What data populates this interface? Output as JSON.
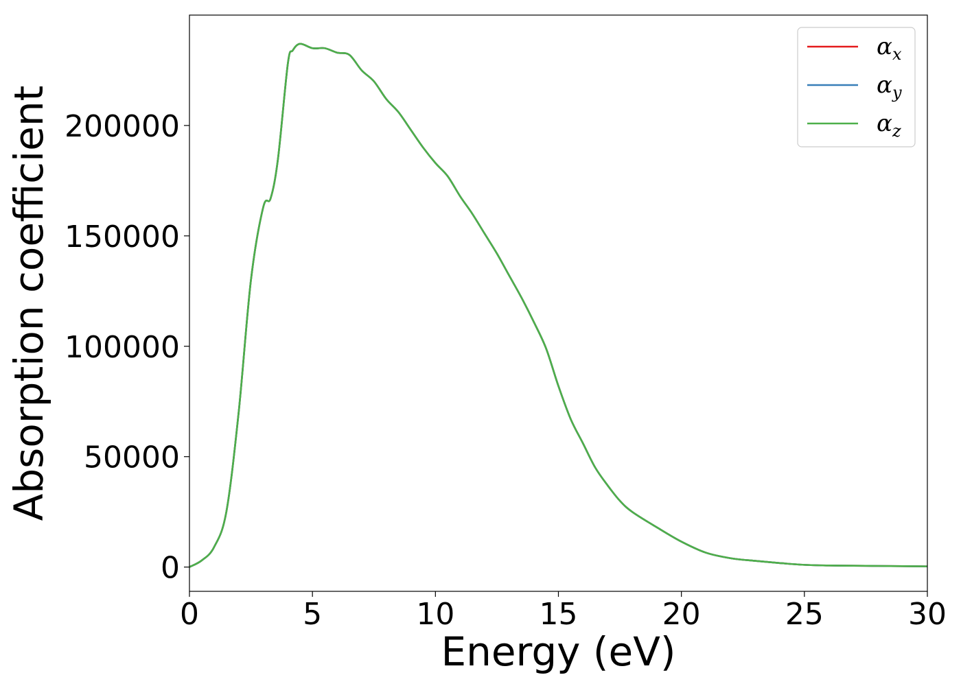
{
  "chart_data": {
    "type": "line",
    "title": "",
    "xlabel": "Energy (eV)",
    "ylabel": "Absorption coefficient",
    "xlim": [
      0,
      30
    ],
    "ylim": [
      -11000,
      250000
    ],
    "xticks": [
      0,
      5,
      10,
      15,
      20,
      25,
      30
    ],
    "yticks": [
      0,
      50000,
      100000,
      150000,
      200000
    ],
    "xtick_labels": [
      "0",
      "5",
      "10",
      "15",
      "20",
      "25",
      "30"
    ],
    "ytick_labels": [
      "0",
      "50000",
      "100000",
      "150000",
      "200000"
    ],
    "grid": false,
    "legend_position": "top-right",
    "x": [
      0,
      0.5,
      1.0,
      1.5,
      2.0,
      2.5,
      3.0,
      3.3,
      3.6,
      4.0,
      4.2,
      4.5,
      5.0,
      5.5,
      6.0,
      6.5,
      7.0,
      7.5,
      8.0,
      8.5,
      9.0,
      9.5,
      10.0,
      10.5,
      11.0,
      11.5,
      12.0,
      12.5,
      13.0,
      13.5,
      14.0,
      14.5,
      15.0,
      15.5,
      16.0,
      16.5,
      17.0,
      17.5,
      18.0,
      19.0,
      20.0,
      21.0,
      22.0,
      23.0,
      24.0,
      25.0,
      26.0,
      27.0,
      28.0,
      29.0,
      30.0
    ],
    "series": [
      {
        "name": "α_x",
        "label_base": "α",
        "label_sub": "x",
        "color": "#e41a1c",
        "values": [
          0,
          3000,
          9000,
          25000,
          70000,
          130000,
          163000,
          167000,
          185000,
          228000,
          234000,
          237000,
          235000,
          235000,
          233000,
          232000,
          225000,
          220000,
          212000,
          206000,
          198000,
          190000,
          183000,
          177000,
          168000,
          160000,
          151000,
          142000,
          132000,
          122000,
          111000,
          99000,
          82000,
          67000,
          56000,
          45000,
          37000,
          30000,
          25000,
          18000,
          11500,
          6500,
          4000,
          2800,
          1800,
          1000,
          700,
          600,
          500,
          400,
          300
        ]
      },
      {
        "name": "α_y",
        "label_base": "α",
        "label_sub": "y",
        "color": "#377eb8",
        "values": [
          0,
          3000,
          9000,
          25000,
          70000,
          130000,
          163000,
          167000,
          185000,
          228000,
          234000,
          237000,
          235000,
          235000,
          233000,
          232000,
          225000,
          220000,
          212000,
          206000,
          198000,
          190000,
          183000,
          177000,
          168000,
          160000,
          151000,
          142000,
          132000,
          122000,
          111000,
          99000,
          82000,
          67000,
          56000,
          45000,
          37000,
          30000,
          25000,
          18000,
          11500,
          6500,
          4000,
          2800,
          1800,
          1000,
          700,
          600,
          500,
          400,
          300
        ]
      },
      {
        "name": "α_z",
        "label_base": "α",
        "label_sub": "z",
        "color": "#4daf4a",
        "values": [
          0,
          3000,
          9000,
          25000,
          70000,
          130000,
          163000,
          167000,
          185000,
          228000,
          234000,
          237000,
          235000,
          235000,
          233000,
          232000,
          225000,
          220000,
          212000,
          206000,
          198000,
          190000,
          183000,
          177000,
          168000,
          160000,
          151000,
          142000,
          132000,
          122000,
          111000,
          99000,
          82000,
          67000,
          56000,
          45000,
          37000,
          30000,
          25000,
          18000,
          11500,
          6500,
          4000,
          2800,
          1800,
          1000,
          700,
          600,
          500,
          400,
          300
        ]
      }
    ]
  }
}
